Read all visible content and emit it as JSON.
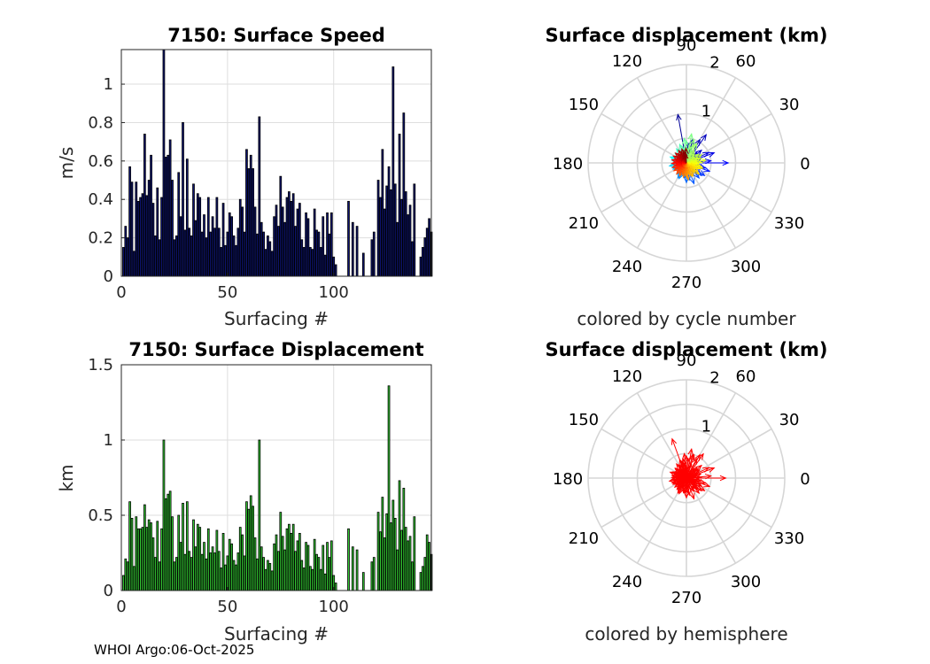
{
  "footer": "WHOI Argo:06-Oct-2025",
  "chart_data": [
    {
      "type": "bar",
      "title": "7150: Surface Speed",
      "xlabel": "Surfacing #",
      "ylabel": "m/s",
      "xlim": [
        0,
        146
      ],
      "ylim": [
        0,
        1.18
      ],
      "xticks": [
        "0",
        "50",
        "100"
      ],
      "yticks": [
        "0",
        "0.2",
        "0.4",
        "0.6",
        "0.8",
        "1"
      ],
      "grid": true,
      "color": "#0d1470",
      "values": [
        0.15,
        0.26,
        0.2,
        0.57,
        0.49,
        0.13,
        0.49,
        0.39,
        0.41,
        0.43,
        0.74,
        0.42,
        0.5,
        0.63,
        0.38,
        0.21,
        0.46,
        0.19,
        0.41,
        1.18,
        0.62,
        0.63,
        0.71,
        0.5,
        0.19,
        0.21,
        0.54,
        0.31,
        0.8,
        0.24,
        0.61,
        0.25,
        0.21,
        0.48,
        0.29,
        0.43,
        0.41,
        0.23,
        0.32,
        0.2,
        0.41,
        0.23,
        0.31,
        0.25,
        0.41,
        0.25,
        0.15,
        0.38,
        0.16,
        0.23,
        0.33,
        0.31,
        0.21,
        0.16,
        0.25,
        0.4,
        0.36,
        0.23,
        0.66,
        0.56,
        0.63,
        0.56,
        0.36,
        0.22,
        0.83,
        0.28,
        0.23,
        0.14,
        0.21,
        0.18,
        0.13,
        0.31,
        0.37,
        0.26,
        0.52,
        0.36,
        0.28,
        0.41,
        0.44,
        0.39,
        0.43,
        0.26,
        0.35,
        0.38,
        0.19,
        0.15,
        0.33,
        0.3,
        0.15,
        0.14,
        0.35,
        0.24,
        0.23,
        0.15,
        0.31,
        0.11,
        0.33,
        0.22,
        0.33,
        0.1,
        0.06,
        0.0,
        0.0,
        0.0,
        0.0,
        0.0,
        0.39,
        0.0,
        0.28,
        0.0,
        0.26,
        0.0,
        0.0,
        0.12,
        0.0,
        0.0,
        0.0,
        0.19,
        0.23,
        0.0,
        0.5,
        0.41,
        0.66,
        0.35,
        0.47,
        0.57,
        0.45,
        1.09,
        0.48,
        0.28,
        0.74,
        0.4,
        0.85,
        0.44,
        0.32,
        0.37,
        0.18,
        0.48,
        0.0,
        0.0,
        0.1,
        0.15,
        0.2,
        0.25,
        0.3,
        0.23
      ],
      "series": []
    },
    {
      "type": "bar",
      "title": "7150: Surface Displacement",
      "xlabel": "Surfacing #",
      "ylabel": "km",
      "xlim": [
        0,
        146
      ],
      "ylim": [
        0,
        1.5
      ],
      "xticks": [
        "0",
        "50",
        "100"
      ],
      "yticks": [
        "0",
        "0.5",
        "1",
        "1.5"
      ],
      "grid": true,
      "color": "#33cc33",
      "values": [
        0.1,
        0.21,
        0.19,
        0.59,
        0.48,
        0.16,
        0.49,
        0.41,
        0.41,
        0.42,
        0.57,
        0.42,
        0.47,
        0.45,
        0.35,
        0.22,
        0.46,
        0.19,
        0.41,
        1.0,
        0.61,
        0.64,
        0.66,
        0.49,
        0.19,
        0.22,
        0.5,
        0.32,
        0.58,
        0.24,
        0.59,
        0.26,
        0.22,
        0.47,
        0.29,
        0.44,
        0.42,
        0.24,
        0.32,
        0.21,
        0.41,
        0.25,
        0.29,
        0.25,
        0.4,
        0.26,
        0.15,
        0.38,
        0.17,
        0.23,
        0.34,
        0.31,
        0.2,
        0.17,
        0.25,
        0.42,
        0.37,
        0.23,
        0.59,
        0.54,
        0.63,
        0.56,
        0.35,
        0.21,
        1.0,
        0.29,
        0.22,
        0.14,
        0.2,
        0.18,
        0.13,
        0.31,
        0.37,
        0.26,
        0.52,
        0.36,
        0.27,
        0.41,
        0.44,
        0.38,
        0.44,
        0.26,
        0.33,
        0.38,
        0.2,
        0.15,
        0.32,
        0.3,
        0.16,
        0.14,
        0.34,
        0.24,
        0.22,
        0.14,
        0.3,
        0.11,
        0.32,
        0.22,
        0.33,
        0.1,
        0.05,
        0.0,
        0.0,
        0.0,
        0.0,
        0.0,
        0.41,
        0.0,
        0.29,
        0.0,
        0.27,
        0.0,
        0.0,
        0.12,
        0.0,
        0.0,
        0.0,
        0.19,
        0.22,
        0.0,
        0.52,
        0.39,
        0.62,
        0.35,
        0.51,
        1.36,
        0.45,
        0.6,
        0.48,
        0.27,
        0.73,
        0.4,
        0.68,
        0.42,
        0.33,
        0.36,
        0.19,
        0.49,
        0.0,
        0.0,
        0.12,
        0.16,
        0.22,
        0.37,
        0.32,
        0.24
      ],
      "series": []
    },
    {
      "type": "polar",
      "title": "Surface displacement (km)",
      "subtitle": "colored by cycle number",
      "rmax": 2,
      "rticks": [
        "1",
        "2"
      ],
      "angle_ticks": [
        "0",
        "30",
        "60",
        "90",
        "120",
        "150",
        "180",
        "210",
        "240",
        "270",
        "300",
        "330"
      ],
      "angles_deg": [
        120,
        120,
        110,
        100,
        85,
        75,
        70,
        60,
        55,
        45,
        40,
        30,
        25,
        20,
        15,
        10,
        5,
        0,
        350,
        345,
        340,
        335,
        330,
        325,
        320,
        315,
        310,
        300,
        290,
        280,
        270,
        265,
        260,
        250,
        245,
        240,
        235,
        230,
        225,
        215,
        210,
        205,
        200,
        195,
        190,
        185,
        180,
        175,
        170,
        165,
        160,
        155,
        150,
        145,
        140,
        135,
        130,
        125,
        120,
        115,
        110,
        105,
        100,
        95,
        90,
        88,
        80,
        78,
        72,
        68,
        62,
        58,
        50,
        42,
        36,
        28,
        22,
        18,
        12,
        8,
        3,
        358,
        352,
        348,
        342,
        338,
        332,
        328,
        322,
        318,
        312,
        305,
        298,
        292,
        286,
        282,
        276,
        272,
        268,
        262,
        258,
        252,
        248,
        242,
        238,
        232,
        228,
        222,
        218,
        212,
        208,
        202,
        198,
        192,
        188,
        182,
        178,
        172,
        168,
        162,
        158,
        152,
        148,
        142,
        138,
        132,
        128,
        122,
        118,
        112,
        108,
        102,
        98,
        92
      ],
      "magnitudes_km": [
        0.3,
        0.2,
        0.3,
        1.0,
        0.4,
        0.5,
        0.3,
        0.55,
        0.7,
        0.3,
        0.4,
        0.3,
        0.5,
        0.6,
        0.3,
        0.2,
        0.5,
        0.85,
        0.3,
        0.4,
        0.5,
        0.3,
        0.2,
        0.45,
        0.4,
        0.3,
        0.4,
        0.3,
        0.45,
        0.35,
        0.4,
        0.3,
        0.3,
        0.2,
        0.35,
        0.35,
        0.25,
        0.3,
        0.2,
        0.25,
        0.2,
        0.3,
        0.3,
        0.25,
        0.35,
        0.3,
        0.2,
        0.25,
        0.3,
        0.2,
        0.35,
        0.3,
        0.25,
        0.2,
        0.3,
        0.25,
        0.2,
        0.35,
        0.3,
        0.2,
        0.4,
        0.35,
        0.3,
        0.5,
        0.45,
        0.3,
        0.6,
        0.35,
        0.5,
        0.4,
        0.45,
        0.3,
        0.25,
        0.2,
        0.3,
        0.35,
        0.25,
        0.3,
        0.2,
        0.4,
        0.3,
        0.25,
        0.2,
        0.3,
        0.35,
        0.3,
        0.25,
        0.2,
        0.3,
        0.35,
        0.25,
        0.2,
        0.3,
        0.3,
        0.25,
        0.2,
        0.35,
        0.3,
        0.25,
        0.2,
        0.3,
        0.25,
        0.2,
        0.3,
        0.25,
        0.2,
        0.3,
        0.25,
        0.2,
        0.3,
        0.25,
        0.2,
        0.3,
        0.25,
        0.2,
        0.3,
        0.25,
        0.2,
        0.3,
        0.25,
        0.2,
        0.3,
        0.25,
        0.2,
        0.3,
        0.25,
        0.2,
        0.3,
        0.25,
        0.2,
        0.3,
        0.25,
        0.2,
        0.3,
        0.35
      ],
      "colors": "cycle-number colormap (blue to red)"
    },
    {
      "type": "polar",
      "title": "Surface displacement (km)",
      "subtitle": "colored by hemisphere",
      "rmax": 2,
      "rticks": [
        "1",
        "2"
      ],
      "angle_ticks": [
        "0",
        "30",
        "60",
        "90",
        "120",
        "150",
        "180",
        "210",
        "240",
        "270",
        "300",
        "330"
      ],
      "angles_deg": [
        110,
        120,
        100,
        85,
        75,
        70,
        60,
        55,
        45,
        40,
        30,
        25,
        20,
        15,
        10,
        5,
        0,
        350,
        345,
        340,
        335,
        330,
        325,
        320,
        315,
        310,
        300,
        290,
        280,
        270,
        265,
        260,
        250,
        245,
        240,
        235,
        230,
        225,
        215,
        210,
        205,
        200,
        195,
        190,
        185,
        180,
        175,
        170,
        165,
        160,
        155,
        150,
        145,
        140,
        135,
        130,
        125,
        120,
        115,
        110,
        105,
        100,
        95,
        90,
        80,
        72,
        62,
        50,
        36,
        22,
        12,
        3,
        352,
        342,
        332,
        322,
        312,
        298,
        286,
        276,
        268,
        258,
        248,
        238,
        228,
        218,
        208,
        198,
        188,
        178,
        168,
        158,
        148,
        138,
        128,
        118,
        108,
        98
      ],
      "magnitudes_km": [
        0.85,
        0.3,
        0.4,
        0.4,
        0.5,
        0.3,
        0.55,
        0.6,
        0.3,
        0.4,
        0.3,
        0.5,
        0.6,
        0.3,
        0.2,
        0.5,
        0.8,
        0.3,
        0.4,
        0.5,
        0.3,
        0.2,
        0.45,
        0.4,
        0.3,
        0.4,
        0.3,
        0.45,
        0.35,
        0.4,
        0.3,
        0.3,
        0.2,
        0.35,
        0.35,
        0.25,
        0.3,
        0.2,
        0.25,
        0.2,
        0.3,
        0.3,
        0.25,
        0.35,
        0.3,
        0.2,
        0.25,
        0.3,
        0.2,
        0.35,
        0.3,
        0.25,
        0.2,
        0.3,
        0.25,
        0.2,
        0.35,
        0.3,
        0.2,
        0.4,
        0.35,
        0.3,
        0.5,
        0.45,
        0.6,
        0.5,
        0.45,
        0.25,
        0.3,
        0.25,
        0.2,
        0.3,
        0.25,
        0.2,
        0.35,
        0.25,
        0.3,
        0.3,
        0.2,
        0.3,
        0.25,
        0.3,
        0.2,
        0.3,
        0.25,
        0.3,
        0.2,
        0.3,
        0.25,
        0.3,
        0.2,
        0.3,
        0.25,
        0.3,
        0.2,
        0.3,
        0.35,
        0.3
      ],
      "color": "#ff0000"
    }
  ]
}
